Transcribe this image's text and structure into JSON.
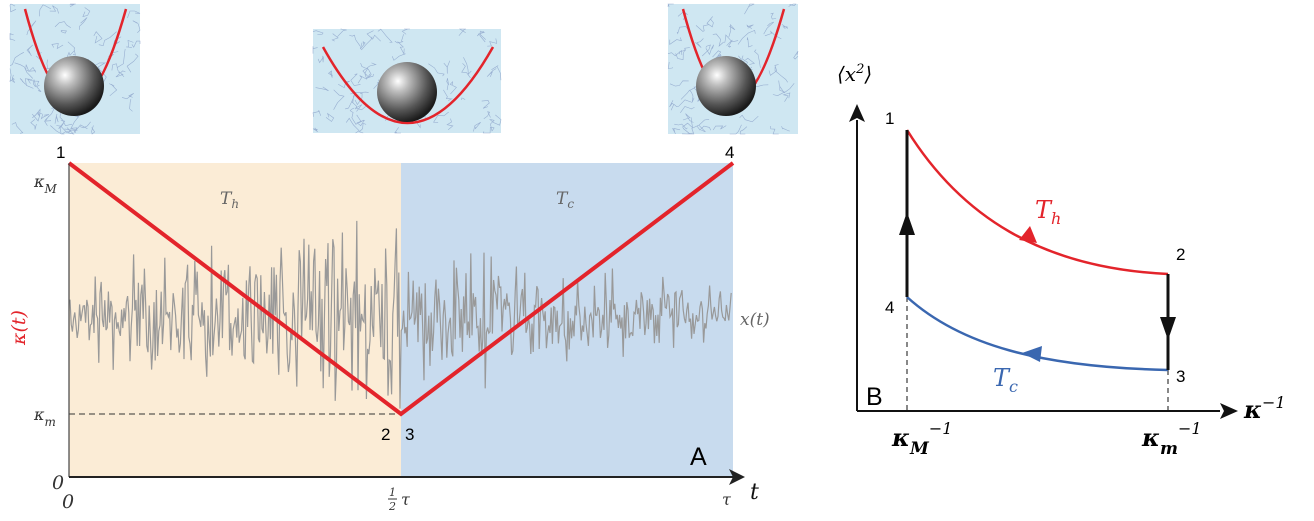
{
  "panel_a": {
    "label": "A",
    "y_axis": {
      "label": "κ(t)",
      "tick_max": "κ",
      "tick_max_sub": "M",
      "tick_min": "κ",
      "tick_min_sub": "m",
      "origin": "0"
    },
    "x_axis": {
      "label": "t",
      "origin": "0",
      "mid_tick": "τ",
      "mid_frac_num": "1",
      "mid_frac_den": "2",
      "end_tick": "τ"
    },
    "regions": [
      {
        "label": "T",
        "sub": "h",
        "color": "#fbecd6"
      },
      {
        "label": "T",
        "sub": "c",
        "color": "#c8dbee"
      }
    ],
    "trace_label": "x(t)",
    "trace_color": "#999999",
    "protocol_color": "#e3242b",
    "corner_labels": [
      "1",
      "2",
      "3",
      "4"
    ]
  },
  "panel_b": {
    "label": "B",
    "y_axis_label": "⟨x",
    "y_axis_label_sup": "2",
    "y_axis_label_end": "⟩",
    "x_axis_label": "κ",
    "x_axis_label_sup": "−1",
    "x_ticks": [
      {
        "base": "κ",
        "sub": "M",
        "sup": "−1"
      },
      {
        "base": "κ",
        "sub": "m",
        "sup": "−1"
      }
    ],
    "hot_label": "T",
    "hot_sub": "h",
    "hot_color": "#e3242b",
    "cold_label": "T",
    "cold_sub": "c",
    "cold_color": "#3a67b0",
    "corner_labels": [
      "1",
      "2",
      "3",
      "4"
    ]
  }
}
